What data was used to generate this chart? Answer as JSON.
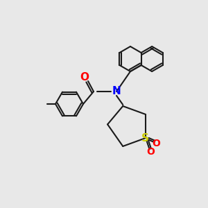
{
  "bg_color": "#e8e8e8",
  "bond_color": "#1a1a1a",
  "bond_width": 1.5,
  "atom_colors": {
    "O": "#ff0000",
    "N": "#0000ff",
    "S": "#cccc00",
    "C": "#1a1a1a"
  },
  "font_size": 9
}
